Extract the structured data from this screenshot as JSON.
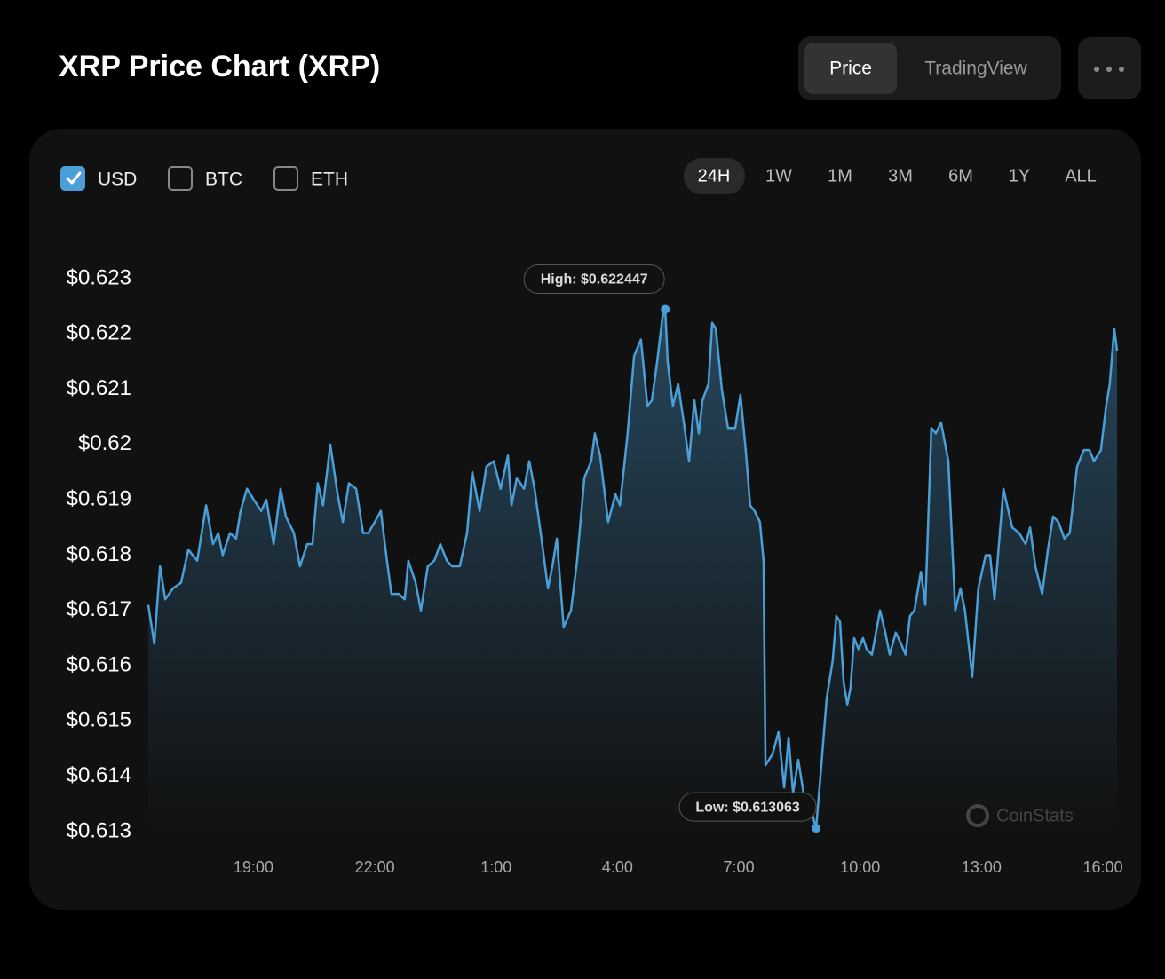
{
  "header": {
    "title": "XRP Price Chart (XRP)",
    "tabs": [
      "Price",
      "TradingView"
    ],
    "active_tab": 0
  },
  "controls": {
    "currencies": [
      "USD",
      "BTC",
      "ETH"
    ],
    "checked": [
      true,
      false,
      false
    ],
    "ranges": [
      "24H",
      "1W",
      "1M",
      "3M",
      "6M",
      "1Y",
      "ALL"
    ],
    "active_range": 0
  },
  "watermark": "CoinStats",
  "chart_data": {
    "type": "line",
    "color": "#4a9fd8",
    "high_label": "High: $0.622447",
    "low_label": "Low: $0.613063",
    "x": [
      16.4,
      16.55,
      16.69,
      16.82,
      17.01,
      17.21,
      17.39,
      17.61,
      17.83,
      18.0,
      18.13,
      18.24,
      18.42,
      18.57,
      18.68,
      18.84,
      19.01,
      19.19,
      19.32,
      19.5,
      19.67,
      19.8,
      20.0,
      20.15,
      20.33,
      20.46,
      20.59,
      20.72,
      20.9,
      21.08,
      21.21,
      21.36,
      21.54,
      21.71,
      21.84,
      22.0,
      22.15,
      22.3,
      22.41,
      22.59,
      22.74,
      22.83,
      23.01,
      23.14,
      23.31,
      23.47,
      23.62,
      23.78,
      23.91,
      24.1,
      24.28,
      24.41,
      24.59,
      24.76,
      24.94,
      25.11,
      25.29,
      25.38,
      25.51,
      25.69,
      25.82,
      25.95,
      26.12,
      26.28,
      26.39,
      26.5,
      26.67,
      26.85,
      27.0,
      27.18,
      27.35,
      27.44,
      27.57,
      27.77,
      27.95,
      28.06,
      28.25,
      28.41,
      28.58,
      28.74,
      28.85,
      28.98,
      29.11,
      29.18,
      29.24,
      29.37,
      29.5,
      29.64,
      29.77,
      29.9,
      30.01,
      30.1,
      30.25,
      30.34,
      30.43,
      30.58,
      30.73,
      30.91,
      31.04,
      31.17,
      31.28,
      31.39,
      31.52,
      31.61,
      31.66,
      31.83,
      31.98,
      32.12,
      32.23,
      32.34,
      32.47,
      32.62,
      32.78,
      32.91,
      33.04,
      33.17,
      33.32,
      33.41,
      33.5,
      33.59,
      33.68,
      33.76,
      33.85,
      33.96,
      34.07,
      34.16,
      34.29,
      34.49,
      34.62,
      34.73,
      34.88,
      35.01,
      35.12,
      35.23,
      35.34,
      35.5,
      35.61,
      35.76,
      35.87,
      36.0,
      36.18,
      36.35,
      36.48,
      36.59,
      36.77,
      36.92,
      37.1,
      37.21,
      37.32,
      37.54,
      37.76,
      37.93,
      38.09,
      38.2,
      38.33,
      38.5,
      38.64,
      38.77,
      38.9,
      39.05,
      39.18,
      39.36,
      39.53,
      39.67,
      39.78,
      39.95,
      40.08,
      40.17,
      40.28,
      40.35
    ],
    "values": [
      0.6171,
      0.6164,
      0.6178,
      0.6172,
      0.6174,
      0.6175,
      0.6181,
      0.6179,
      0.6189,
      0.6182,
      0.6184,
      0.618,
      0.6184,
      0.6183,
      0.6188,
      0.6192,
      0.619,
      0.6188,
      0.619,
      0.6182,
      0.6192,
      0.6187,
      0.6184,
      0.6178,
      0.6182,
      0.6182,
      0.6193,
      0.6189,
      0.62,
      0.6191,
      0.6186,
      0.6193,
      0.6192,
      0.6184,
      0.6184,
      0.6186,
      0.6188,
      0.6179,
      0.6173,
      0.6173,
      0.6172,
      0.6179,
      0.6175,
      0.617,
      0.6178,
      0.6179,
      0.6182,
      0.6179,
      0.6178,
      0.6178,
      0.6184,
      0.6195,
      0.6188,
      0.6196,
      0.6197,
      0.6192,
      0.6198,
      0.6189,
      0.6194,
      0.6192,
      0.6197,
      0.6192,
      0.6183,
      0.6174,
      0.6178,
      0.6183,
      0.6167,
      0.617,
      0.6179,
      0.6194,
      0.6197,
      0.6202,
      0.6198,
      0.6186,
      0.6191,
      0.6189,
      0.6202,
      0.6216,
      0.6219,
      0.6207,
      0.6208,
      0.6215,
      0.6223,
      0.622447,
      0.6215,
      0.6207,
      0.6211,
      0.6204,
      0.6197,
      0.6208,
      0.6202,
      0.6208,
      0.6211,
      0.6222,
      0.6221,
      0.621,
      0.6203,
      0.6203,
      0.6209,
      0.6199,
      0.6189,
      0.6188,
      0.6186,
      0.6179,
      0.6142,
      0.6144,
      0.6148,
      0.6138,
      0.6147,
      0.6137,
      0.6143,
      0.6136,
      0.6134,
      0.613063,
      0.6142,
      0.6154,
      0.6161,
      0.6169,
      0.6168,
      0.6157,
      0.6153,
      0.6156,
      0.6165,
      0.6163,
      0.6165,
      0.6163,
      0.6162,
      0.617,
      0.6166,
      0.6162,
      0.6166,
      0.6164,
      0.6162,
      0.6169,
      0.617,
      0.6177,
      0.6171,
      0.6203,
      0.6202,
      0.6204,
      0.6197,
      0.617,
      0.6174,
      0.617,
      0.6158,
      0.6174,
      0.618,
      0.618,
      0.6172,
      0.6192,
      0.6185,
      0.6184,
      0.6182,
      0.6185,
      0.6178,
      0.6173,
      0.6181,
      0.6187,
      0.6186,
      0.6183,
      0.6184,
      0.6196,
      0.6199,
      0.6199,
      0.6197,
      0.6199,
      0.6207,
      0.6211,
      0.6221,
      0.6217
    ],
    "xlim": [
      16.4,
      40.35
    ],
    "xticks": [
      {
        "value": 19,
        "label": "19:00"
      },
      {
        "value": 22,
        "label": "22:00"
      },
      {
        "value": 25,
        "label": "1:00"
      },
      {
        "value": 28,
        "label": "4:00"
      },
      {
        "value": 31,
        "label": "7:00"
      },
      {
        "value": 34,
        "label": "10:00"
      },
      {
        "value": 37,
        "label": "13:00"
      },
      {
        "value": 40,
        "label": "16:00"
      }
    ],
    "ylim": [
      0.613,
      0.623
    ],
    "yticks": [
      {
        "value": 0.613,
        "label": "$0.613"
      },
      {
        "value": 0.614,
        "label": "$0.614"
      },
      {
        "value": 0.615,
        "label": "$0.615"
      },
      {
        "value": 0.616,
        "label": "$0.616"
      },
      {
        "value": 0.617,
        "label": "$0.617"
      },
      {
        "value": 0.618,
        "label": "$0.618"
      },
      {
        "value": 0.619,
        "label": "$0.619"
      },
      {
        "value": 0.62,
        "label": "$0.62"
      },
      {
        "value": 0.621,
        "label": "$0.621"
      },
      {
        "value": 0.622,
        "label": "$0.622"
      },
      {
        "value": 0.623,
        "label": "$0.623"
      }
    ],
    "grid": false
  }
}
